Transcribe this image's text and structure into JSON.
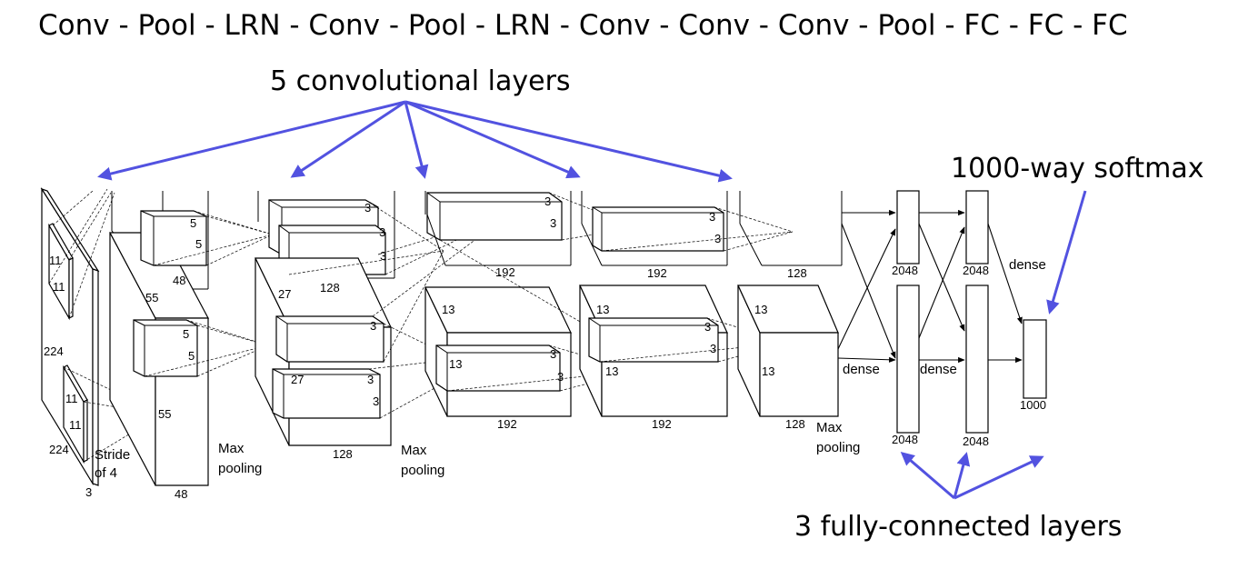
{
  "header": {
    "pipeline": "Conv - Pool - LRN - Conv - Pool - LRN - Conv - Conv - Conv - Pool - FC - FC - FC"
  },
  "callouts": {
    "conv": "5 convolutional layers",
    "softmax": "1000-way softmax",
    "fc": "3 fully-connected layers"
  },
  "labels": {
    "input_224_side": "224",
    "input_224_bottom": "224",
    "input_3": "3",
    "k11_a": "11",
    "k11_b": "11",
    "k11_c": "11",
    "k11_d": "11",
    "stride_1": "Stride",
    "stride_2": "of 4",
    "c1_55_top": "55",
    "c1_55_bot": "55",
    "c1_48_top": "48",
    "c1_48_bot": "48",
    "c1_k5_a": "5",
    "c1_k5_b": "5",
    "c1_k5_c": "5",
    "c1_k5_d": "5",
    "pool1_1": "Max",
    "pool1_2": "pooling",
    "c2_27_top": "27",
    "c2_27_bot": "27",
    "c2_128_top": "128",
    "c2_128_bot": "128",
    "c2_k3_a": "3",
    "c2_k3_b": "3",
    "c2_k3_c": "3",
    "c2_k3_d": "3",
    "c2_k3_e": "3",
    "c2_k3_f": "3",
    "pool2_1": "Max",
    "pool2_2": "pooling",
    "c3_13_a": "13",
    "c3_13_b": "13",
    "c3_192_top": "192",
    "c3_192_bot": "192",
    "c3_k3_a": "3",
    "c3_k3_b": "3",
    "c3_k3_c": "3",
    "c3_k3_d": "3",
    "c4_13_a": "13",
    "c4_13_b": "13",
    "c4_192_top": "192",
    "c4_192_bot": "192",
    "c4_k3_a": "3",
    "c4_k3_b": "3",
    "c4_k3_c": "3",
    "c4_k3_d": "3",
    "c5_13_a": "13",
    "c5_13_b": "13",
    "c5_128_top": "128",
    "c5_128_bot": "128",
    "pool3_1": "Max",
    "pool3_2": "pooling",
    "fc1_top": "2048",
    "fc1_bot": "2048",
    "fc2_top": "2048",
    "fc2_bot": "2048",
    "fc3": "1000",
    "dense_1": "dense",
    "dense_2": "dense",
    "dense_3": "dense"
  },
  "colors": {
    "callout_arrow": "#5252e0",
    "line": "#000000"
  }
}
